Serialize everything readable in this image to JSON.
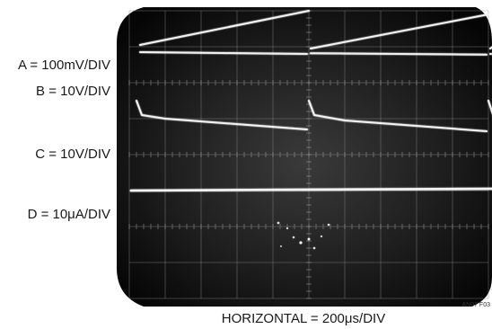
{
  "chart_data": {
    "type": "line",
    "title": "",
    "channel_labels": {
      "a": "A = 100mV/DIV",
      "b": "B = 10V/DIV",
      "c": "C = 10V/DIV",
      "d": "D = 10μA/DIV"
    },
    "xlabel": "HORIZONTAL = 200μs/DIV",
    "figure_code": "AN07 F03",
    "grid": true,
    "divisions": {
      "x": 10,
      "y": 8
    },
    "xlim": [
      0,
      10
    ],
    "ylim": [
      0,
      8
    ],
    "series": [
      {
        "id": "a",
        "segments": [
          {
            "x": [
              0.3,
              5.0
            ],
            "y": [
              7.05,
              8.0
            ]
          },
          {
            "x": [
              5.05,
              10.0
            ],
            "y": [
              6.95,
              7.9
            ]
          },
          {
            "x": [
              10.05,
              10.2
            ],
            "y": [
              6.95,
              7.05
            ]
          }
        ]
      },
      {
        "id": "b",
        "segments": [
          {
            "x": [
              0.3,
              4.95
            ],
            "y": [
              6.85,
              6.8
            ]
          },
          {
            "x": [
              5.05,
              9.95
            ],
            "y": [
              6.82,
              6.78
            ]
          },
          {
            "x": [
              10.05,
              10.2
            ],
            "y": [
              6.8,
              6.8
            ]
          }
        ]
      },
      {
        "id": "c",
        "segments": [
          {
            "x": [
              0.2,
              0.35,
              1.0,
              4.95
            ],
            "y": [
              5.5,
              5.1,
              5.0,
              4.7
            ]
          },
          {
            "x": [
              5.0,
              5.15,
              6.0,
              9.95
            ],
            "y": [
              5.5,
              5.1,
              4.95,
              4.65
            ]
          },
          {
            "x": [
              10.0,
              10.15
            ],
            "y": [
              5.5,
              5.05
            ]
          }
        ]
      },
      {
        "id": "d",
        "segments": [
          {
            "x": [
              0.05,
              10.2
            ],
            "y": [
              3.0,
              3.05
            ]
          }
        ]
      }
    ]
  }
}
